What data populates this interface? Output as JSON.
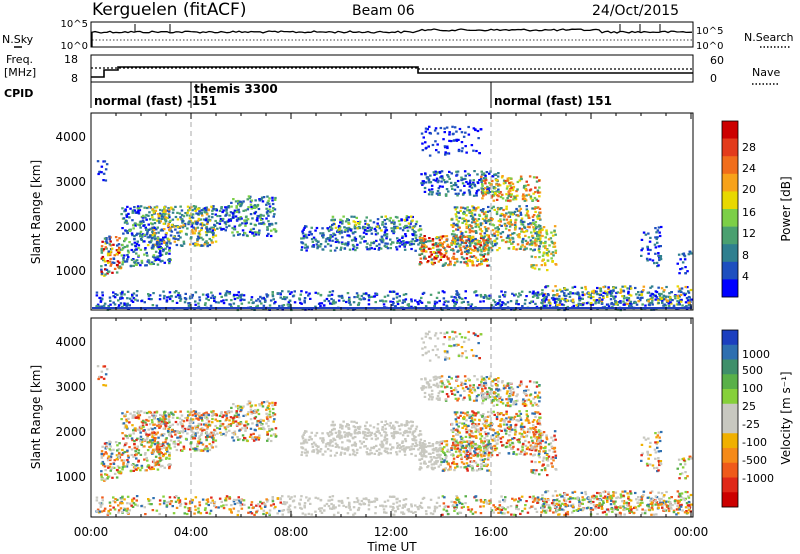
{
  "header": {
    "station": "Kerguelen (fitACF)",
    "beam": "Beam 06",
    "date": "24/Oct/2015"
  },
  "panels": {
    "nsky": {
      "label": "N.Sky",
      "left_ticks": [
        "10^5",
        "10^0"
      ],
      "right_ticks": [
        "10^5",
        "10^0"
      ],
      "right_label": "N.Search"
    },
    "freq": {
      "label_line1": "Freq.",
      "label_line2": "[MHz]",
      "left_ticks": [
        "18",
        "8"
      ],
      "right_ticks": [
        "60",
        "0"
      ],
      "right_label": "Nave"
    },
    "cpid": {
      "label": "CPID",
      "segments": [
        "normal (fast) -151",
        "themis 3300",
        "normal (fast) 151"
      ]
    }
  },
  "plots": {
    "power": {
      "ylabel": "Slant Range [km]",
      "yticks": [
        "4000",
        "3000",
        "2000",
        "1000"
      ]
    },
    "velocity": {
      "ylabel": "Slant Range [km]",
      "yticks": [
        "4000",
        "3000",
        "2000",
        "1000"
      ]
    }
  },
  "xaxis": {
    "label": "Time UT",
    "ticks": [
      "00:00",
      "04:00",
      "08:00",
      "12:00",
      "16:00",
      "20:00",
      "00:00"
    ]
  },
  "colorbars": {
    "power": {
      "label": "Power [dB]",
      "ticks": [
        "28",
        "24",
        "20",
        "16",
        "12",
        "8",
        "4"
      ],
      "colors": [
        "#0000ff",
        "#1e4fbf",
        "#2f7f8f",
        "#4aa070",
        "#7ccf47",
        "#e8d800",
        "#f7a21a",
        "#f06d1b",
        "#e33b1b",
        "#cc0000"
      ]
    },
    "velocity": {
      "label": "Velocity [m s⁻¹]",
      "ticks": [
        "1000",
        "500",
        "100",
        "25",
        "-25",
        "-100",
        "-500",
        "-1000"
      ],
      "colors": [
        "#1c3fbf",
        "#2e6fb0",
        "#3f8f6a",
        "#59b048",
        "#86d03a",
        "#c8c8c0",
        "#c8c8c0",
        "#f0b000",
        "#f58a18",
        "#ef5a1a",
        "#e02818",
        "#cc0000"
      ]
    }
  },
  "colors": {
    "background": "#ffffff",
    "axes": "#000000",
    "dashed_marker": "#aaaaaa",
    "power_ground": "#1e3fbf"
  }
}
